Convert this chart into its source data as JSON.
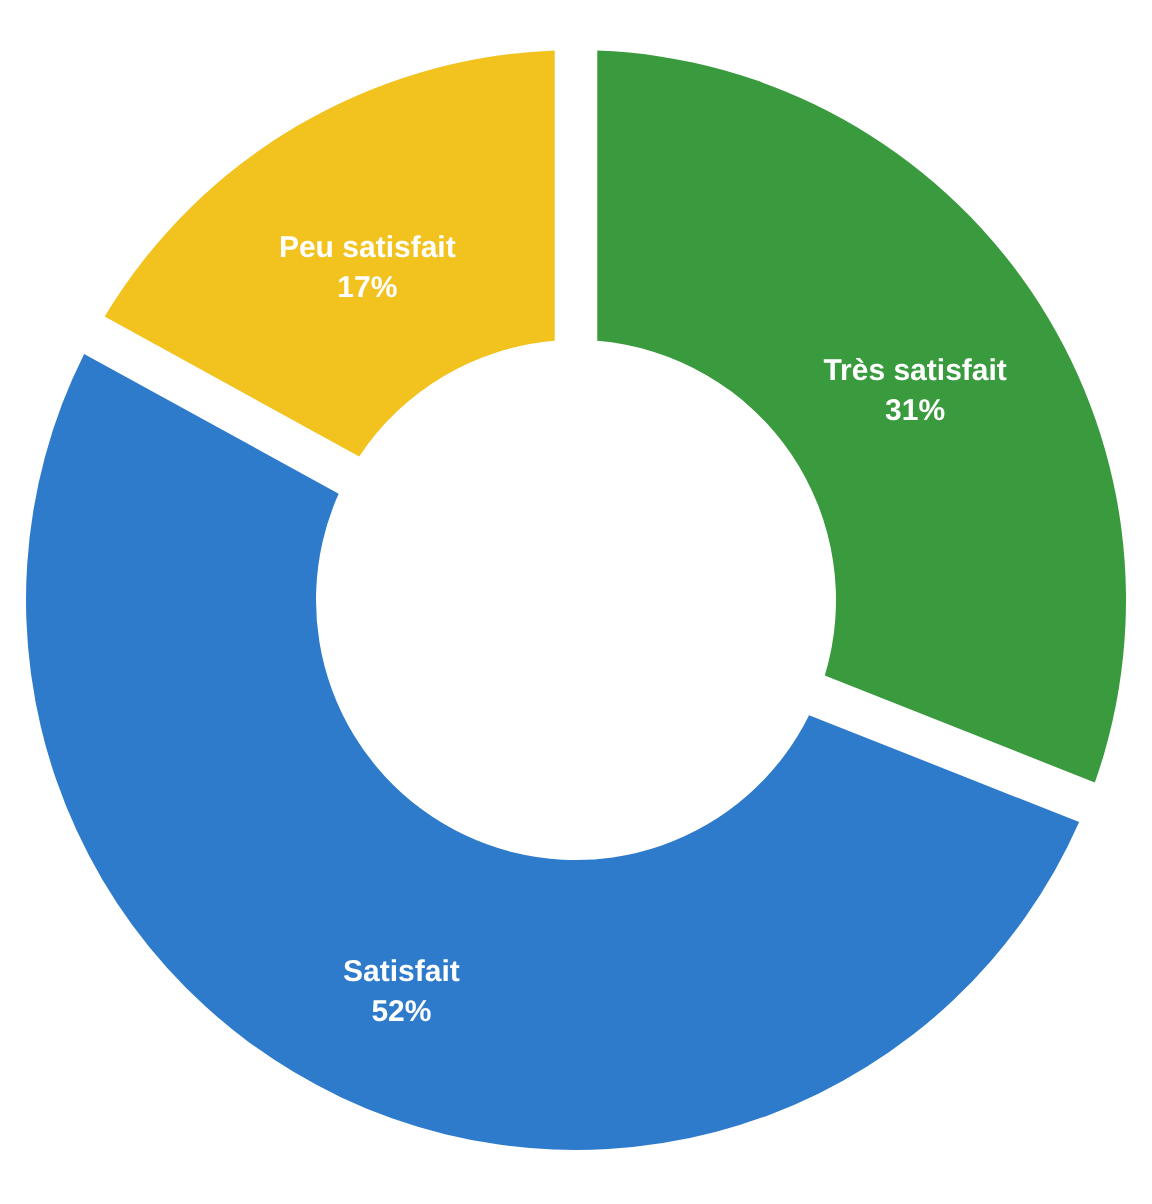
{
  "chart_data": {
    "type": "donut",
    "categories": [
      "Très satisfait",
      "Satisfait",
      "Peu satisfait"
    ],
    "values": [
      31,
      52,
      17
    ],
    "colors": [
      "#3a9a3e",
      "#2f7bcb",
      "#f2c21f"
    ],
    "value_labels": [
      "31%",
      "52%",
      "17%"
    ]
  }
}
